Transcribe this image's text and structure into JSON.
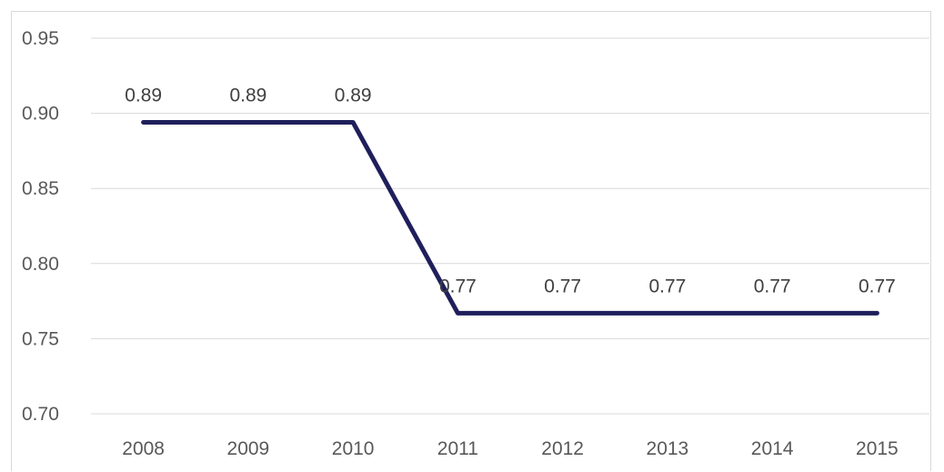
{
  "chart_data": {
    "type": "line",
    "title": "",
    "xlabel": "",
    "ylabel": "",
    "categories": [
      "2008",
      "2009",
      "2010",
      "2011",
      "2012",
      "2013",
      "2014",
      "2015"
    ],
    "series": [
      {
        "values": [
          0.894,
          0.894,
          0.894,
          0.767,
          0.767,
          0.767,
          0.767,
          0.767
        ],
        "data_labels": [
          "0.89",
          "0.89",
          "0.89",
          "0.77",
          "0.77",
          "0.77",
          "0.77",
          "0.77"
        ],
        "color": "#1f1f5c"
      }
    ],
    "ylim": [
      0.7,
      0.95
    ],
    "yticks": [
      "0.70",
      "0.75",
      "0.80",
      "0.85",
      "0.90",
      "0.95"
    ],
    "grid": true,
    "legend": "none"
  }
}
